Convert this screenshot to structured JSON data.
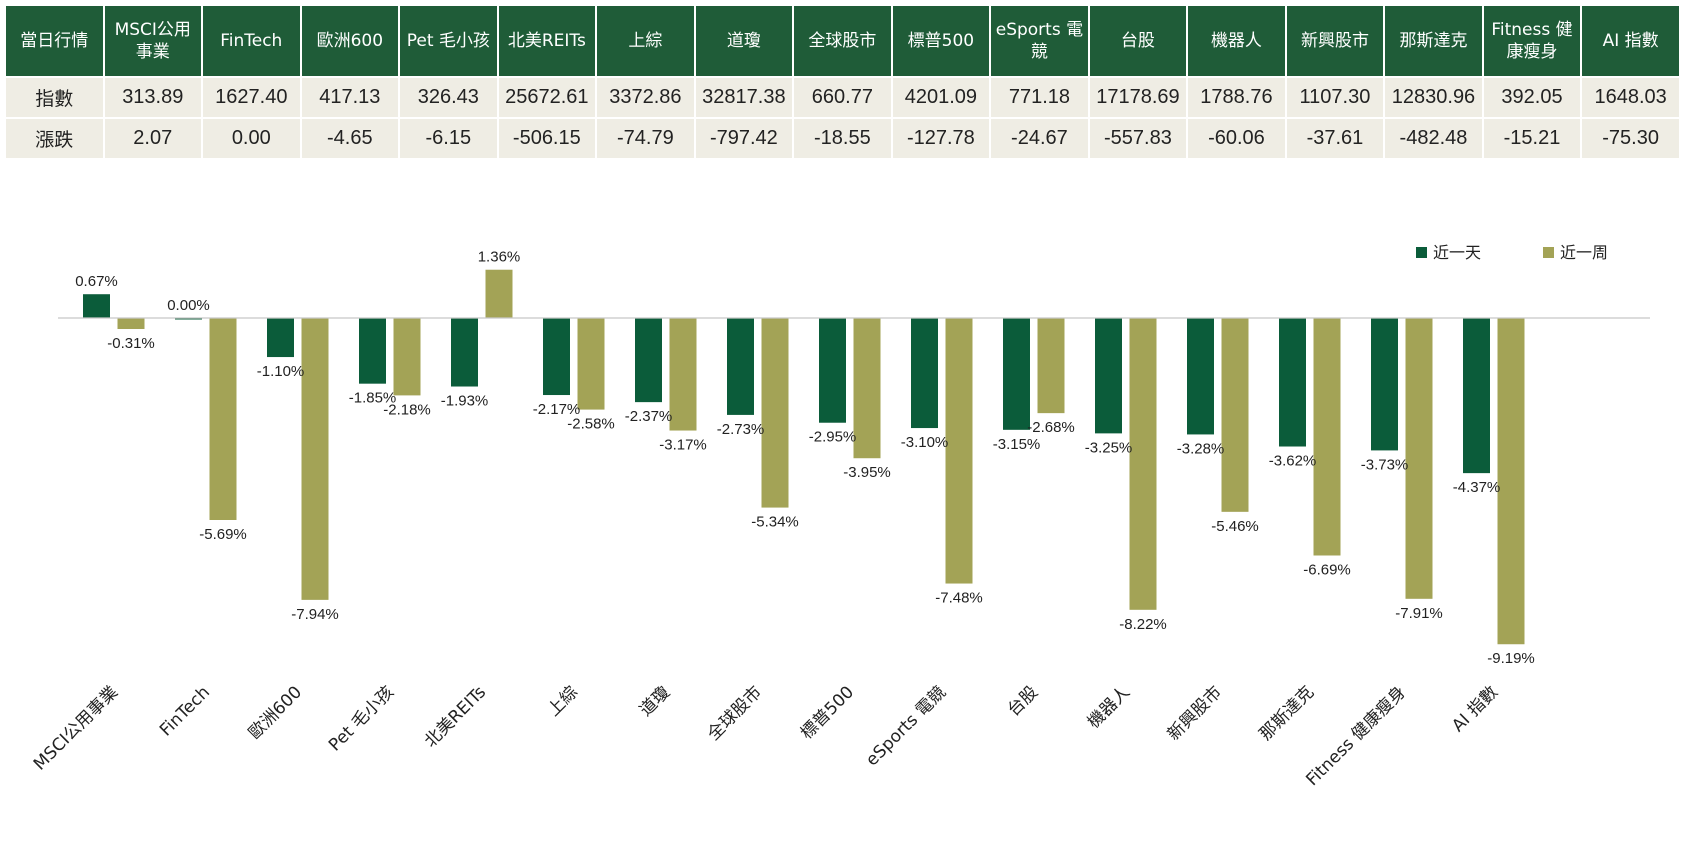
{
  "table": {
    "corner": "當日行情",
    "columns": [
      "MSCI公用事業",
      "FinTech",
      "歐洲600",
      "Pet 毛小孩",
      "北美REITs",
      "上綜",
      "道瓊",
      "全球股市",
      "標普500",
      "eSports 電競",
      "台股",
      "機器人",
      "新興股市",
      "那斯達克",
      "Fitness 健康瘦身",
      "AI 指數"
    ],
    "rows": [
      {
        "label": "指數",
        "values": [
          "313.89",
          "1627.40",
          "417.13",
          "326.43",
          "25672.61",
          "3372.86",
          "32817.38",
          "660.77",
          "4201.09",
          "771.18",
          "17178.69",
          "1788.76",
          "1107.30",
          "12830.96",
          "392.05",
          "1648.03"
        ]
      },
      {
        "label": "漲跌",
        "values": [
          "2.07",
          "0.00",
          "-4.65",
          "-6.15",
          "-506.15",
          "-74.79",
          "-797.42",
          "-18.55",
          "-127.78",
          "-24.67",
          "-557.83",
          "-60.06",
          "-37.61",
          "-482.48",
          "-15.21",
          "-75.30"
        ]
      }
    ]
  },
  "colors": {
    "header_bg": "#1f5c38",
    "cell_bg": "#efede4",
    "series_day": "#0b5c3a",
    "series_week": "#a3a356"
  },
  "chart_data": {
    "type": "bar",
    "categories": [
      "MSCI公用事業",
      "FinTech",
      "歐洲600",
      "Pet 毛小孩",
      "北美REITs",
      "上綜",
      "道瓊",
      "全球股市",
      "標普500",
      "eSports 電競",
      "台股",
      "機器人",
      "新興股市",
      "那斯達克",
      "Fitness 健康瘦身",
      "AI 指數"
    ],
    "series": [
      {
        "name": "近一天",
        "values": [
          0.67,
          0.0,
          -1.1,
          -1.85,
          -1.93,
          -2.17,
          -2.37,
          -2.73,
          -2.95,
          -3.1,
          -3.15,
          -3.25,
          -3.28,
          -3.62,
          -3.73,
          -4.37
        ],
        "labels": [
          "0.67%",
          "0.00%",
          "-1.10%",
          "-1.85%",
          "-1.93%",
          "-2.17%",
          "-2.37%",
          "-2.73%",
          "-2.95%",
          "-3.10%",
          "-3.15%",
          "-3.25%",
          "-3.28%",
          "-3.62%",
          "-3.73%",
          "-4.37%"
        ]
      },
      {
        "name": "近一周",
        "values": [
          -0.31,
          -5.69,
          -7.94,
          -2.18,
          1.36,
          -2.58,
          -3.17,
          -5.34,
          -3.95,
          -7.48,
          -2.68,
          -8.22,
          -5.46,
          -6.69,
          -7.91,
          -9.19
        ],
        "labels": [
          "-0.31%",
          "-5.69%",
          "-7.94%",
          "-2.18%",
          "1.36%",
          "-2.58%",
          "-3.17%",
          "-5.34%",
          "-3.95%",
          "-7.48%",
          "-2.68%",
          "-8.22%",
          "-5.46%",
          "-6.69%",
          "-7.91%",
          "-9.19%"
        ]
      }
    ],
    "ylim": [
      -9.5,
      1.5
    ],
    "grid": false,
    "legend": "top-right"
  }
}
